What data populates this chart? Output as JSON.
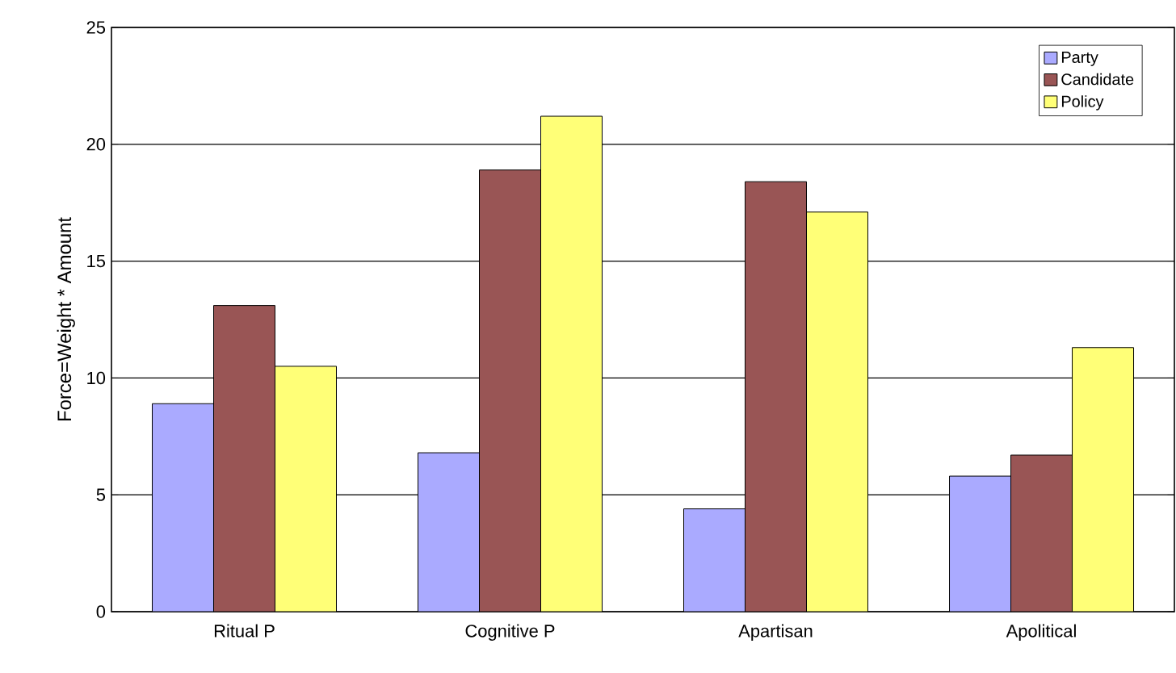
{
  "chart_data": {
    "type": "bar",
    "ylabel": "Force=Weight * Amount",
    "categories": [
      "Ritual P",
      "Cognitive P",
      "Apartisan",
      "Apolitical"
    ],
    "series": [
      {
        "name": "Party",
        "color": "#aaaaff",
        "values": [
          8.9,
          6.8,
          4.4,
          5.8
        ]
      },
      {
        "name": "Candidate",
        "color": "#995555",
        "values": [
          13.1,
          18.9,
          18.4,
          6.7
        ]
      },
      {
        "name": "Policy",
        "color": "#ffff77",
        "values": [
          10.5,
          21.2,
          17.1,
          11.3
        ]
      }
    ],
    "ylim": [
      0,
      25
    ],
    "yticks": [
      0,
      5,
      10,
      15,
      20,
      25
    ],
    "grid": "y",
    "legend": "top right"
  }
}
